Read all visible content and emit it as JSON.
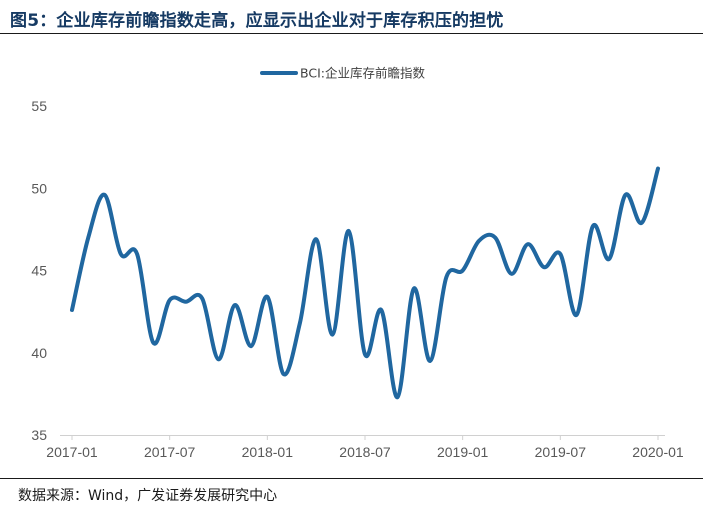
{
  "figure": {
    "title": "图5：企业库存前瞻指数走高，应显示出企业对于库存积压的担忧",
    "source": "数据来源：Wind，广发证券发展研究中心"
  },
  "chart_data": {
    "type": "line",
    "title": "",
    "xlabel": "",
    "ylabel": "",
    "ylim": [
      35,
      55
    ],
    "yticks": [
      "35",
      "40",
      "45",
      "50",
      "55"
    ],
    "xtick_labels": [
      "2017-01",
      "2017-07",
      "2018-01",
      "2018-07",
      "2019-01",
      "2019-07",
      "2020-01"
    ],
    "x": [
      "2017-01",
      "2017-02",
      "2017-03",
      "2017-04",
      "2017-05",
      "2017-06",
      "2017-07",
      "2017-08",
      "2017-09",
      "2017-10",
      "2017-11",
      "2017-12",
      "2018-01",
      "2018-02",
      "2018-03",
      "2018-04",
      "2018-05",
      "2018-06",
      "2018-07",
      "2018-08",
      "2018-09",
      "2018-10",
      "2018-11",
      "2018-12",
      "2019-01",
      "2019-02",
      "2019-03",
      "2019-04",
      "2019-05",
      "2019-06",
      "2019-07",
      "2019-08",
      "2019-09",
      "2019-10",
      "2019-11",
      "2019-12",
      "2020-01"
    ],
    "legend_position": "top-center",
    "grid": false,
    "series": [
      {
        "name": "BCI:企业库存前瞻指数",
        "color": "#2067a0",
        "values": [
          42.6,
          47.0,
          49.6,
          46.0,
          46.0,
          40.6,
          43.2,
          43.1,
          43.3,
          39.6,
          42.9,
          40.4,
          43.4,
          38.7,
          41.8,
          46.9,
          41.1,
          47.4,
          39.9,
          42.6,
          37.3,
          43.9,
          39.5,
          44.6,
          45.0,
          46.8,
          47.0,
          44.8,
          46.6,
          45.2,
          46.0,
          42.3,
          47.7,
          45.7,
          49.6,
          47.9,
          51.2
        ]
      }
    ]
  }
}
